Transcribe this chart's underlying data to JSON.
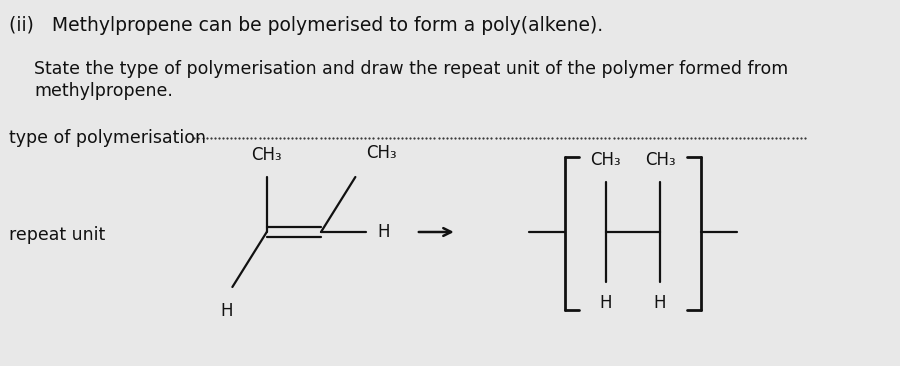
{
  "title_text": "(ii)   Methylpropene can be polymerised to form a poly(alkene).",
  "body_line1": "State the type of polymerisation and draw the repeat unit of the polymer formed from",
  "body_line2": "methylpropene.",
  "label_poly": "type of polymerisation",
  "label_repeat": "repeat unit",
  "bg_color": "#e8e8e8",
  "text_color": "#111111",
  "fs_title": 13.5,
  "fs_body": 12.5,
  "fs_chem": 12,
  "fs_label": 11
}
